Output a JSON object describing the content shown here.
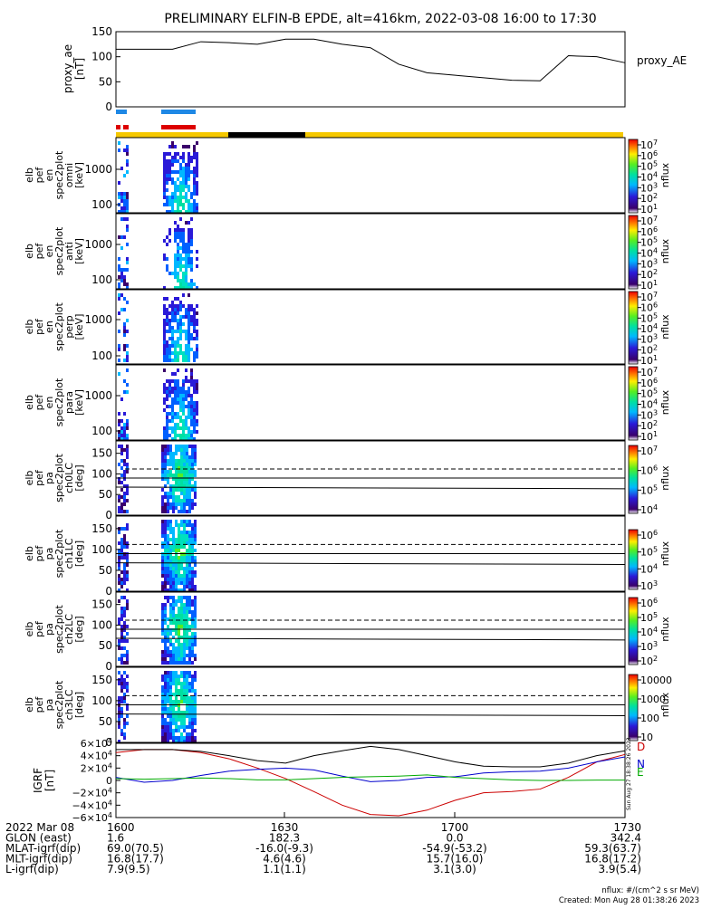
{
  "title": "PRELIMINARY ELFIN-B EPDE, alt=416km, 2022-03-08 16:00 to 17:30",
  "chart_data": [
    {
      "panel": "proxy_ae",
      "type": "line",
      "ylabel": "proxy_ae [nT]",
      "legend": "proxy_AE",
      "y_ticks": [
        "150",
        "100",
        "50",
        "0"
      ],
      "ylim": [
        0,
        150
      ],
      "x_minutes": [
        0,
        5,
        10,
        15,
        20,
        25,
        30,
        35,
        40,
        45,
        50,
        55,
        60,
        65,
        70,
        75,
        80,
        85,
        90
      ],
      "values": [
        115,
        115,
        115,
        130,
        128,
        125,
        135,
        135,
        125,
        118,
        85,
        68,
        63,
        58,
        53,
        52,
        102,
        100,
        88
      ]
    },
    {
      "panel": "en_omni",
      "type": "heatmap",
      "ylabel": [
        "elb",
        "pef",
        "en",
        "spec2plot",
        "omni",
        "[keV]"
      ],
      "y_ticks": [
        "1000",
        "100"
      ],
      "zlabel": "nflux",
      "z_ticks": [
        "10^7",
        "10^6",
        "10^5",
        "10^4",
        "10^3",
        "10^2",
        "10^1"
      ]
    },
    {
      "panel": "en_anti",
      "type": "heatmap",
      "ylabel": [
        "elb",
        "pef",
        "en",
        "spec2plot",
        "anti",
        "[keV]"
      ],
      "y_ticks": [
        "1000",
        "100"
      ],
      "zlabel": "nflux",
      "z_ticks": [
        "10^7",
        "10^6",
        "10^5",
        "10^4",
        "10^3",
        "10^2",
        "10^1"
      ]
    },
    {
      "panel": "en_perp",
      "type": "heatmap",
      "ylabel": [
        "elb",
        "pef",
        "en",
        "spec2plot",
        "perp",
        "[keV]"
      ],
      "y_ticks": [
        "1000",
        "100"
      ],
      "zlabel": "nflux",
      "z_ticks": [
        "10^7",
        "10^6",
        "10^5",
        "10^4",
        "10^3",
        "10^2",
        "10^1"
      ]
    },
    {
      "panel": "en_para",
      "type": "heatmap",
      "ylabel": [
        "elb",
        "pef",
        "en",
        "spec2plot",
        "para",
        "[keV]"
      ],
      "y_ticks": [
        "1000",
        "100"
      ],
      "zlabel": "nflux",
      "z_ticks": [
        "10^7",
        "10^6",
        "10^5",
        "10^4",
        "10^3",
        "10^2",
        "10^1"
      ]
    },
    {
      "panel": "pa_ch0LC",
      "type": "heatmap",
      "ylabel": [
        "elb",
        "pef",
        "pa",
        "spec2plot",
        "ch0LC",
        "[deg]"
      ],
      "y_ticks": [
        "150",
        "100",
        "50",
        "0"
      ],
      "ylim": [
        0,
        180
      ],
      "zlabel": "nflux",
      "z_ticks": [
        "10^7",
        "10^6",
        "10^5",
        "10^4"
      ]
    },
    {
      "panel": "pa_ch1LC",
      "type": "heatmap",
      "ylabel": [
        "elb",
        "pef",
        "pa",
        "spec2plot",
        "ch1LC",
        "[deg]"
      ],
      "y_ticks": [
        "150",
        "100",
        "50",
        "0"
      ],
      "ylim": [
        0,
        180
      ],
      "zlabel": "nflux",
      "z_ticks": [
        "10^6",
        "10^5",
        "10^4",
        "10^3"
      ]
    },
    {
      "panel": "pa_ch2LC",
      "type": "heatmap",
      "ylabel": [
        "elb",
        "pef",
        "pa",
        "spec2plot",
        "ch2LC",
        "[deg]"
      ],
      "y_ticks": [
        "150",
        "100",
        "50",
        "0"
      ],
      "ylim": [
        0,
        180
      ],
      "zlabel": "nflux",
      "z_ticks": [
        "10^6",
        "10^5",
        "10^4",
        "10^3",
        "10^2"
      ]
    },
    {
      "panel": "pa_ch3LC",
      "type": "heatmap",
      "ylabel": [
        "elb",
        "pef",
        "pa",
        "spec2plot",
        "ch3LC",
        "[deg]"
      ],
      "y_ticks": [
        "150",
        "100",
        "50",
        "0"
      ],
      "ylim": [
        0,
        180
      ],
      "zlabel": "nflux",
      "z_ticks": [
        "10000",
        "1000",
        "100",
        "10"
      ]
    },
    {
      "panel": "igrf",
      "type": "line",
      "ylabel": "IGRF [nT]",
      "y_ticks": [
        "6×10^4",
        "4×10^4",
        "2×10^4",
        "0",
        "−2×10^4",
        "−4×10^4",
        "−6×10^4"
      ],
      "ylim": [
        -60000,
        60000
      ],
      "x_minutes": [
        0,
        5,
        10,
        15,
        20,
        25,
        30,
        35,
        40,
        45,
        50,
        55,
        60,
        65,
        70,
        75,
        80,
        85,
        90
      ],
      "series": [
        {
          "name": "D",
          "color": "#cc0000",
          "values": [
            45000,
            50000,
            50000,
            45000,
            35000,
            20000,
            3000,
            -18000,
            -40000,
            -55000,
            -57000,
            -48000,
            -32000,
            -20000,
            -18000,
            -14000,
            5000,
            30000,
            42000
          ]
        },
        {
          "name": "N",
          "color": "#0000cc",
          "values": [
            5000,
            -3000,
            0,
            8000,
            15000,
            18000,
            20000,
            17000,
            7000,
            -2000,
            0,
            5000,
            6000,
            12000,
            14000,
            15000,
            20000,
            30000,
            38000
          ]
        },
        {
          "name": "E",
          "color": "#00aa00",
          "values": [
            3000,
            2000,
            3000,
            4000,
            3000,
            1000,
            1000,
            3000,
            5000,
            6000,
            7000,
            9000,
            5000,
            3000,
            1000,
            0,
            0,
            500,
            500
          ]
        },
        {
          "name": "",
          "color": "#000000",
          "values": [
            50000,
            50000,
            50000,
            47000,
            40000,
            32000,
            28000,
            40000,
            48000,
            55000,
            50000,
            40000,
            30000,
            23000,
            22000,
            22000,
            28000,
            40000,
            48000
          ]
        }
      ]
    }
  ],
  "xaxis": {
    "rows": [
      {
        "label": "2022 Mar 08",
        "values": [
          "1600",
          "1630",
          "1700",
          "1730"
        ]
      },
      {
        "label": "GLON (east)",
        "values": [
          "1.6",
          "182.3",
          "0.0",
          "342.4"
        ]
      },
      {
        "label": "MLAT-igrf(dip)",
        "values": [
          "69.0(70.5)",
          "-16.0(-9.3)",
          "-54.9(-53.2)",
          "59.3(63.7)"
        ]
      },
      {
        "label": "MLT-igrf(dip)",
        "values": [
          "16.8(17.7)",
          "4.6(4.6)",
          "15.7(16.0)",
          "16.8(17.2)"
        ]
      },
      {
        "label": "L-igrf(dip)",
        "values": [
          "7.9(9.5)",
          "1.1(1.1)",
          "3.1(3.0)",
          "3.9(5.4)"
        ]
      }
    ]
  },
  "footer": {
    "units": "nflux: #/(cm^2 s sr MeV)",
    "created": "Created: Mon Aug 28 01:38:26 2023",
    "side_note": "Sun Aug 27 18:38:26 2023"
  }
}
